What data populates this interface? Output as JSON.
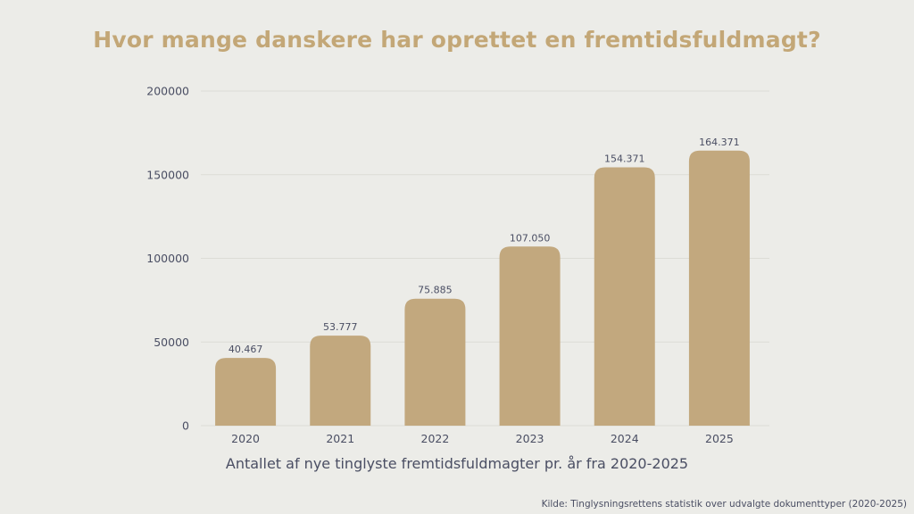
{
  "chart_data": {
    "type": "bar",
    "title": "Hvor mange danskere har oprettet en fremtidsfuldmagt?",
    "xlabel": "Antallet af nye tinglyste fremtidsfuldmagter pr. år fra 2020-2025",
    "ylabel": "",
    "categories": [
      "2020",
      "2021",
      "2022",
      "2023",
      "2024",
      "2025"
    ],
    "values": [
      40467,
      53777,
      75885,
      107050,
      154371,
      164371
    ],
    "data_labels": [
      "40.467",
      "53.777",
      "75.885",
      "107.050",
      "154.371",
      "164.371"
    ],
    "ylim": [
      0,
      200000
    ],
    "yticks": [
      0,
      50000,
      100000,
      150000,
      200000
    ],
    "ytick_labels": [
      "0",
      "50000",
      "100000",
      "150000",
      "200000"
    ],
    "grid": true,
    "source": "Kilde: Tinglysningsrettens statistik over udvalgte dokumenttyper (2020-2025)"
  },
  "colors": {
    "bar": "#c2a87e",
    "title": "#c3a777",
    "text": "#4a4e63",
    "grid": "#dcdcd6",
    "background": "#ececE8"
  }
}
